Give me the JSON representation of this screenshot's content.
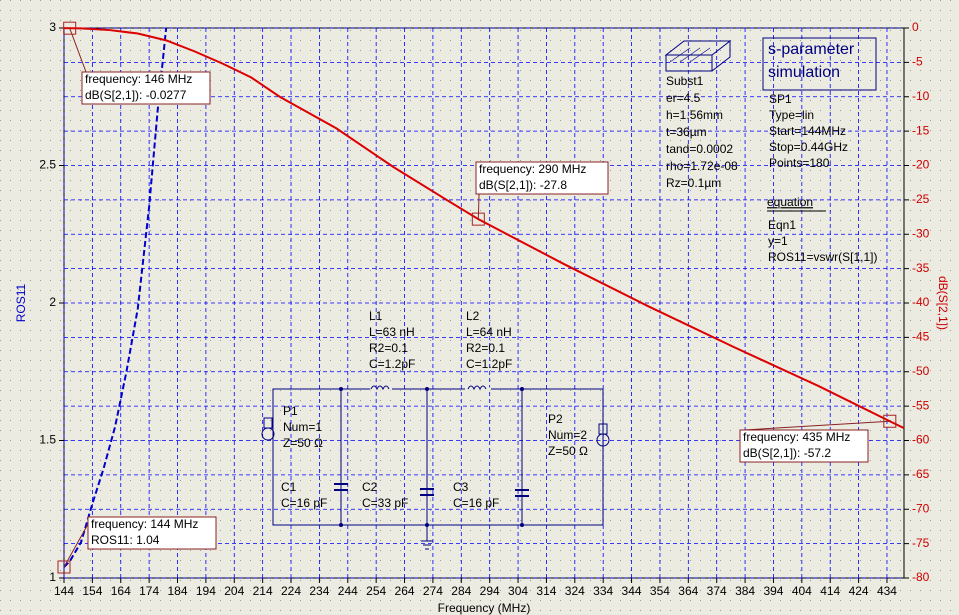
{
  "chart_data": {
    "type": "line",
    "x_label": "Frequency (MHz)",
    "y_label": "ROS11",
    "y2_label": "dB(S[2,1])",
    "xlim": [
      144,
      440
    ],
    "xticks": [
      144,
      154,
      164,
      174,
      184,
      194,
      204,
      214,
      224,
      234,
      244,
      254,
      264,
      274,
      284,
      294,
      304,
      314,
      324,
      334,
      344,
      354,
      364,
      374,
      384,
      394,
      404,
      414,
      424,
      434
    ],
    "ylim": [
      1,
      3
    ],
    "yticks": [
      1,
      1.5,
      2,
      2.5,
      3
    ],
    "y2lim": [
      -80,
      0
    ],
    "y2ticks": [
      0,
      -5,
      -10,
      -15,
      -20,
      -25,
      -30,
      -35,
      -40,
      -45,
      -50,
      -55,
      -60,
      -65,
      -70,
      -75,
      -80
    ],
    "grid": true,
    "series": [
      {
        "color": "#0000cc",
        "dash": true,
        "x": [
          144,
          146,
          150,
          154,
          158,
          162,
          166,
          170,
          174,
          177,
          180
        ],
        "values": [
          1.04,
          1.06,
          1.13,
          1.27,
          1.4,
          1.55,
          1.75,
          1.98,
          2.35,
          2.7,
          3.0
        ]
      },
      {
        "color": "#dd0000",
        "axis": "y2",
        "x": [
          144,
          150,
          160,
          170,
          180,
          190,
          200,
          210,
          220,
          240,
          260,
          280,
          290,
          320,
          350,
          380,
          410,
          435,
          440
        ],
        "values": [
          -0.02,
          -0.05,
          -0.3,
          -0.8,
          -1.8,
          -3.4,
          -5.2,
          -7.2,
          -10,
          -14.6,
          -20.2,
          -25.3,
          -27.8,
          -34.3,
          -40.5,
          -46.4,
          -52.1,
          -57.2,
          -58.2
        ]
      }
    ],
    "markers": [
      {
        "x": 146,
        "y": -0.0277,
        "axis": "y2",
        "text": [
          "frequency: 146 MHz",
          "dB(S[2,1]): -0.0277"
        ]
      },
      {
        "x": 290,
        "y": -27.8,
        "axis": "y2",
        "text": [
          "frequency: 290 MHz",
          "dB(S[2,1]): -27.8"
        ]
      },
      {
        "x": 435,
        "y": -57.2,
        "axis": "y2",
        "text": [
          "frequency: 435 MHz",
          "dB(S[2,1]): -57.2"
        ]
      },
      {
        "x": 144,
        "y": 1.04,
        "text": [
          "frequency: 144 MHz",
          "ROS11: 1.04"
        ]
      }
    ]
  },
  "schematic": {
    "substrate": [
      "Subst1",
      "er=4.5",
      "h=1.56mm",
      "t=36µm",
      "tand=0.0002",
      "rho=1.72e-08",
      "Rz=0.1µm"
    ],
    "simulation_title": [
      "s-parameter",
      "simulation"
    ],
    "simulation": [
      "SP1",
      "Type=lin",
      "Start=144MHz",
      "Stop=0.44GHz",
      "Points=180"
    ],
    "equation_title": "equation",
    "equation": [
      "Eqn1",
      "y=1",
      "ROS11=vswr(S[1,1])"
    ],
    "components": [
      [
        "L1",
        "L=63 nH",
        "R2=0.1",
        "C=1.2pF"
      ],
      [
        "L2",
        "L=64 nH",
        "R2=0.1",
        "C=1.2pF"
      ],
      [
        "P1",
        "Num=1",
        "Z=50 Ω"
      ],
      [
        "P2",
        "Num=2",
        "Z=50 Ω"
      ],
      [
        "C1",
        "C=16 pF"
      ],
      [
        "C2",
        "C=33 pF"
      ],
      [
        "C3",
        "C=16 pF"
      ]
    ]
  }
}
